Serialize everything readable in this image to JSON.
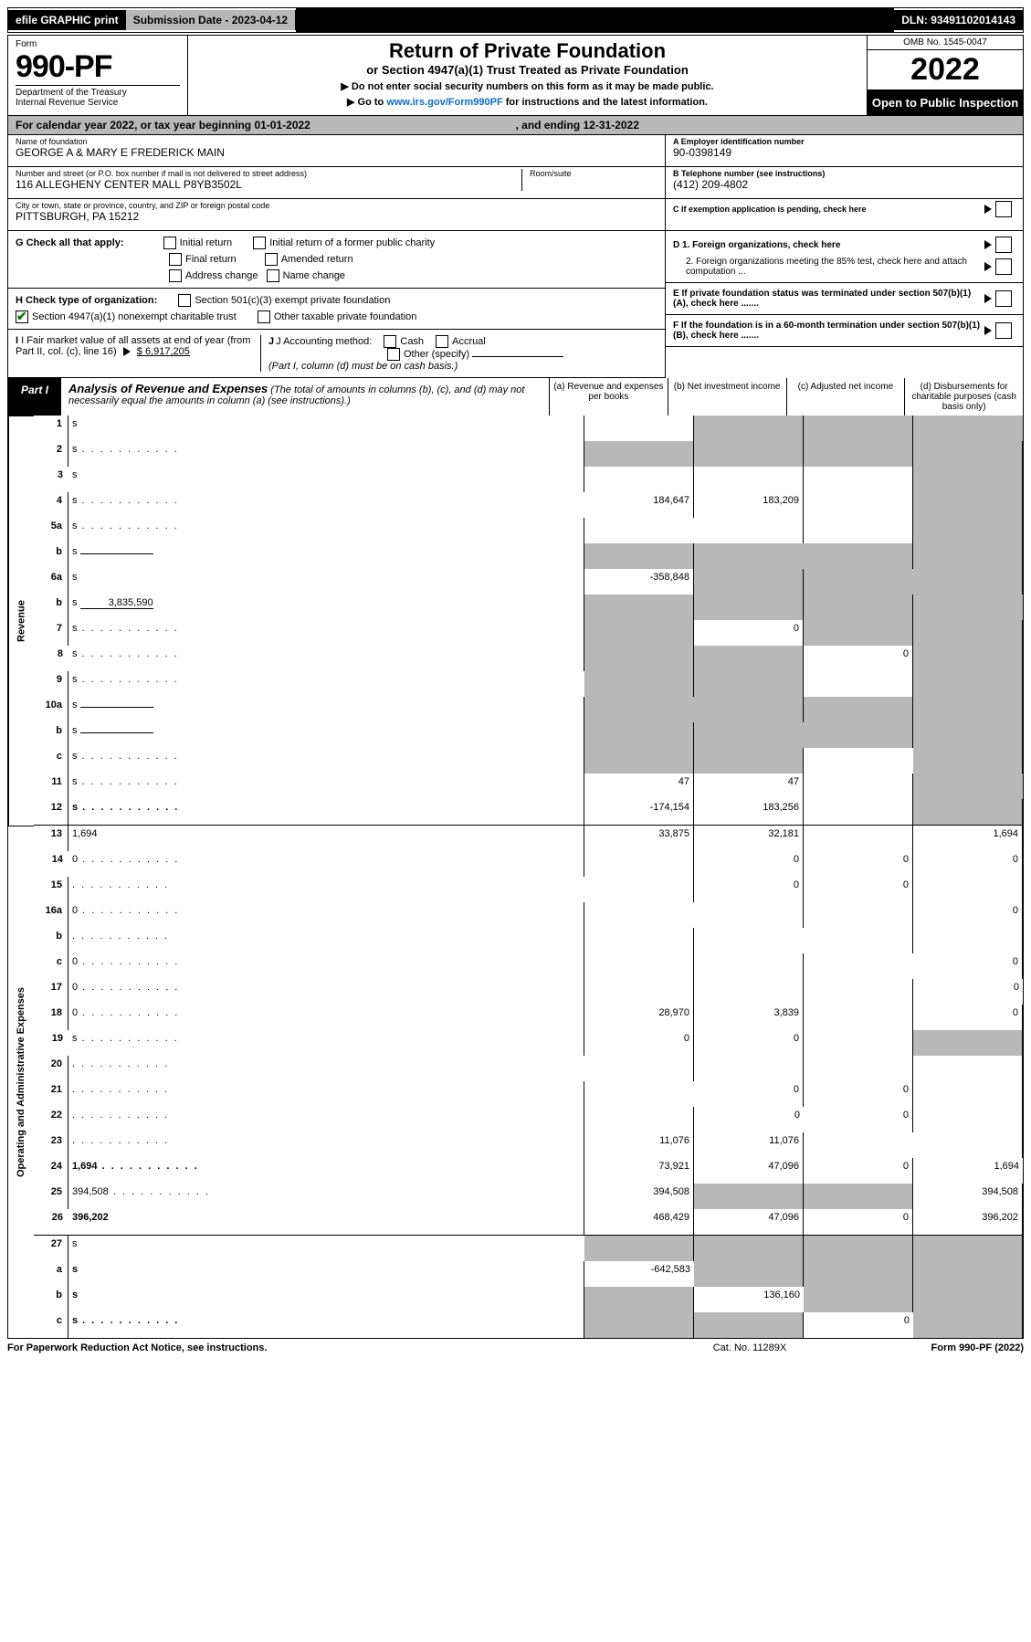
{
  "topbar": {
    "efile": "efile GRAPHIC print",
    "subdate_label": "Submission Date - ",
    "subdate": "2023-04-12",
    "dln_label": "DLN: ",
    "dln": "93491102014143"
  },
  "header": {
    "form_label": "Form",
    "form_number": "990-PF",
    "dept": "Department of the Treasury\nInternal Revenue Service",
    "title": "Return of Private Foundation",
    "subtitle": "or Section 4947(a)(1) Trust Treated as Private Foundation",
    "instr1": "▶ Do not enter social security numbers on this form as it may be made public.",
    "instr2_pre": "▶ Go to ",
    "instr2_link": "www.irs.gov/Form990PF",
    "instr2_post": " for instructions and the latest information.",
    "omb": "OMB No. 1545-0047",
    "year": "2022",
    "open": "Open to Public Inspection"
  },
  "calyear": {
    "text1": "For calendar year 2022, or tax year beginning ",
    "begin": "01-01-2022",
    "text2": ", and ending ",
    "end": "12-31-2022"
  },
  "id": {
    "name_label": "Name of foundation",
    "name": "GEORGE A & MARY E FREDERICK MAIN",
    "addr_label": "Number and street (or P.O. box number if mail is not delivered to street address)",
    "addr": "116 ALLEGHENY CENTER MALL P8YB3502L",
    "room_label": "Room/suite",
    "city_label": "City or town, state or province, country, and ZIP or foreign postal code",
    "city": "PITTSBURGH, PA  15212",
    "ein_label": "A Employer identification number",
    "ein": "90-0398149",
    "phone_label": "B Telephone number (see instructions)",
    "phone": "(412) 209-4802",
    "c_label": "C If exemption application is pending, check here"
  },
  "checks": {
    "G": "G Check all that apply:",
    "G_opts": [
      "Initial return",
      "Initial return of a former public charity",
      "Final return",
      "Amended return",
      "Address change",
      "Name change"
    ],
    "H": "H Check type of organization:",
    "H_opts": [
      "Section 501(c)(3) exempt private foundation",
      "Section 4947(a)(1) nonexempt charitable trust",
      "Other taxable private foundation"
    ],
    "I_label": "I Fair market value of all assets at end of year (from Part II, col. (c), line 16)",
    "I_amount": "$  6,917,205",
    "J": "J Accounting method:",
    "J_opts": [
      "Cash",
      "Accrual",
      "Other (specify)"
    ],
    "J_note": "(Part I, column (d) must be on cash basis.)",
    "D1": "D 1. Foreign organizations, check here",
    "D2": "2. Foreign organizations meeting the 85% test, check here and attach computation ...",
    "E": "E If private foundation status was terminated under section 507(b)(1)(A), check here .......",
    "F": "F If the foundation is in a 60-month termination under section 507(b)(1)(B), check here ......."
  },
  "part1": {
    "label": "Part I",
    "title": "Analysis of Revenue and Expenses",
    "note": "(The total of amounts in columns (b), (c), and (d) may not necessarily equal the amounts in column (a) (see instructions).)",
    "col_a": "(a) Revenue and expenses per books",
    "col_b": "(b) Net investment income",
    "col_c": "(c) Adjusted net income",
    "col_d": "(d) Disbursements for charitable purposes (cash basis only)"
  },
  "sides": {
    "revenue": "Revenue",
    "expenses": "Operating and Administrative Expenses"
  },
  "rows": [
    {
      "n": "1",
      "d": "s",
      "a": "",
      "b": "s",
      "c": "s"
    },
    {
      "n": "2",
      "d": "s",
      "a": "s",
      "b": "s",
      "c": "s",
      "dots": true
    },
    {
      "n": "3",
      "d": "s",
      "a": "",
      "b": "",
      "c": ""
    },
    {
      "n": "4",
      "d": "s",
      "a": "184,647",
      "b": "183,209",
      "c": "",
      "dots": true
    },
    {
      "n": "5a",
      "d": "s",
      "a": "",
      "b": "",
      "c": "",
      "dots": true
    },
    {
      "n": "b",
      "d": "s",
      "a": "s",
      "b": "s",
      "c": "s",
      "inline": ""
    },
    {
      "n": "6a",
      "d": "s",
      "a": "-358,848",
      "b": "s",
      "c": "s"
    },
    {
      "n": "b",
      "d": "s",
      "a": "s",
      "b": "s",
      "c": "s",
      "inline": "3,835,590"
    },
    {
      "n": "7",
      "d": "s",
      "a": "s",
      "b": "0",
      "c": "s",
      "dots": true
    },
    {
      "n": "8",
      "d": "s",
      "a": "s",
      "b": "s",
      "c": "0",
      "dots": true
    },
    {
      "n": "9",
      "d": "s",
      "a": "s",
      "b": "s",
      "c": "",
      "dots": true
    },
    {
      "n": "10a",
      "d": "s",
      "a": "s",
      "b": "s",
      "c": "s",
      "inline": ""
    },
    {
      "n": "b",
      "d": "s",
      "a": "s",
      "b": "s",
      "c": "s",
      "inline": "",
      "dots": true
    },
    {
      "n": "c",
      "d": "s",
      "a": "s",
      "b": "s",
      "c": "",
      "dots": true
    },
    {
      "n": "11",
      "d": "s",
      "a": "47",
      "b": "47",
      "c": "",
      "dots": true
    },
    {
      "n": "12",
      "d": "s",
      "a": "-174,154",
      "b": "183,256",
      "c": "",
      "bold": true,
      "line": true,
      "dots": true
    },
    {
      "n": "13",
      "d": "1,694",
      "a": "33,875",
      "b": "32,181",
      "c": ""
    },
    {
      "n": "14",
      "d": "0",
      "a": "",
      "b": "0",
      "c": "0",
      "dots": true
    },
    {
      "n": "15",
      "d": "",
      "a": "",
      "b": "0",
      "c": "0",
      "dots": true
    },
    {
      "n": "16a",
      "d": "0",
      "a": "",
      "b": "",
      "c": "",
      "dots": true
    },
    {
      "n": "b",
      "d": "",
      "a": "",
      "b": "",
      "c": "",
      "dots": true
    },
    {
      "n": "c",
      "d": "0",
      "a": "",
      "b": "",
      "c": "",
      "dots": true
    },
    {
      "n": "17",
      "d": "0",
      "a": "",
      "b": "",
      "c": "",
      "dots": true
    },
    {
      "n": "18",
      "d": "0",
      "a": "28,970",
      "b": "3,839",
      "c": "",
      "dots": true
    },
    {
      "n": "19",
      "d": "s",
      "a": "0",
      "b": "0",
      "c": "",
      "dots": true
    },
    {
      "n": "20",
      "d": "",
      "a": "",
      "b": "",
      "c": "",
      "dots": true
    },
    {
      "n": "21",
      "d": "",
      "a": "",
      "b": "0",
      "c": "0",
      "dots": true
    },
    {
      "n": "22",
      "d": "",
      "a": "",
      "b": "0",
      "c": "0",
      "dots": true
    },
    {
      "n": "23",
      "d": "",
      "a": "11,076",
      "b": "11,076",
      "c": "",
      "dots": true
    },
    {
      "n": "24",
      "d": "1,694",
      "a": "73,921",
      "b": "47,096",
      "c": "0",
      "bold": true,
      "dots": true
    },
    {
      "n": "25",
      "d": "394,508",
      "a": "394,508",
      "b": "s",
      "c": "s",
      "dots": true
    },
    {
      "n": "26",
      "d": "396,202",
      "a": "468,429",
      "b": "47,096",
      "c": "0",
      "bold": true,
      "line": true
    },
    {
      "n": "27",
      "d": "s",
      "a": "s",
      "b": "s",
      "c": "s"
    },
    {
      "n": "a",
      "d": "s",
      "a": "-642,583",
      "b": "s",
      "c": "s",
      "bold": true
    },
    {
      "n": "b",
      "d": "s",
      "a": "s",
      "b": "136,160",
      "c": "s",
      "bold": true
    },
    {
      "n": "c",
      "d": "s",
      "a": "s",
      "b": "s",
      "c": "0",
      "bold": true,
      "dots": true
    }
  ],
  "footer": {
    "left": "For Paperwork Reduction Act Notice, see instructions.",
    "center": "Cat. No. 11289X",
    "right": "Form 990-PF (2022)"
  },
  "colors": {
    "shade": "#b8b8b8",
    "link": "#0b6bcb",
    "check": "#0a7a0a"
  }
}
